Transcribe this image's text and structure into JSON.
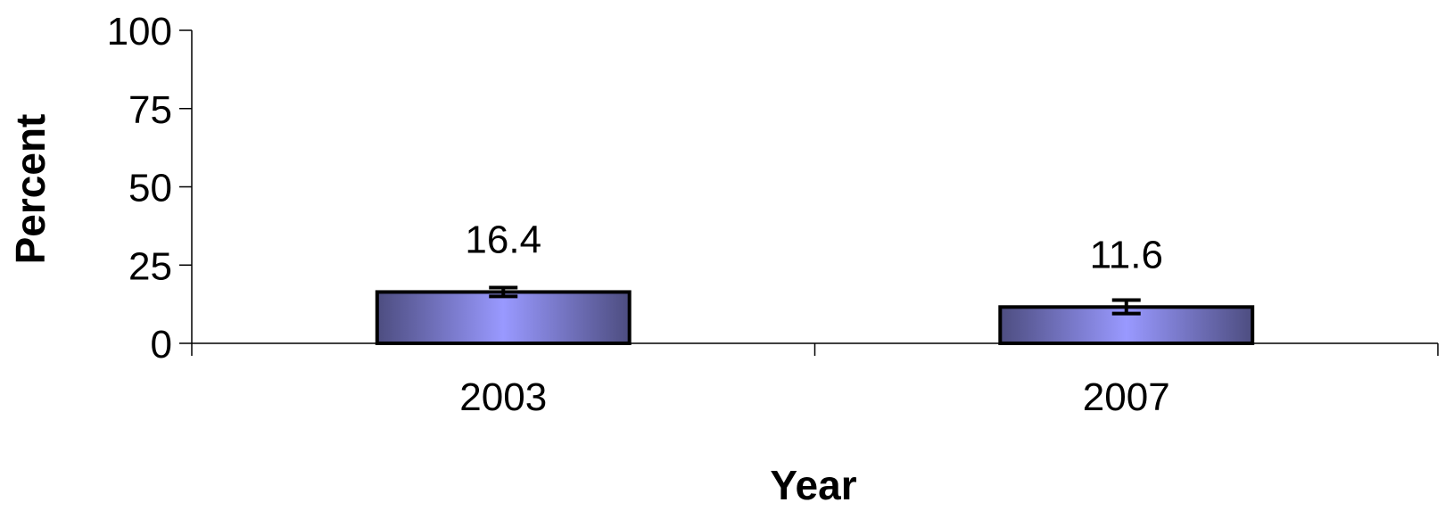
{
  "chart_data": {
    "type": "bar",
    "categories": [
      "2003",
      "2007"
    ],
    "values": [
      16.4,
      11.6
    ],
    "data_labels": [
      "16.4",
      "11.6"
    ],
    "error_bars": [
      {
        "low": 15.0,
        "high": 17.8
      },
      {
        "low": 9.5,
        "high": 13.8
      }
    ],
    "title": "",
    "xlabel": "Year",
    "ylabel": "Percent",
    "ylim": [
      0,
      100
    ],
    "yticks": [
      0,
      25,
      50,
      75,
      100
    ],
    "grid": false,
    "legend": "none",
    "bar_color": "#9999ff",
    "bar_edge_color": "#4d4d80"
  }
}
